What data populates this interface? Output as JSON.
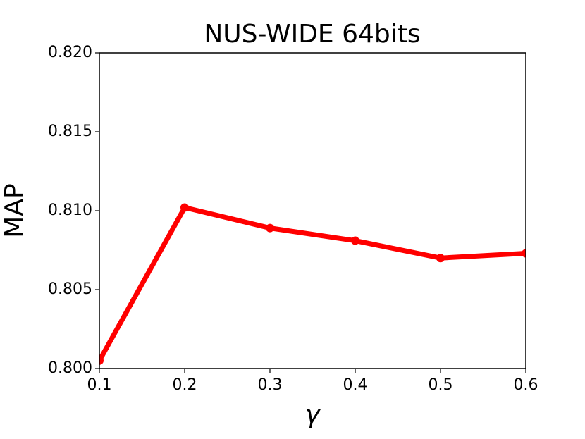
{
  "chart_data": {
    "type": "line",
    "title": "NUS-WIDE 64bits",
    "xlabel": "γ",
    "ylabel": "MAP",
    "x": [
      0.1,
      0.2,
      0.3,
      0.4,
      0.5,
      0.6
    ],
    "series": [
      {
        "color": "#ff0000",
        "values": [
          0.8005,
          0.8102,
          0.8089,
          0.8081,
          0.807,
          0.8073
        ]
      }
    ],
    "xlim": [
      0.1,
      0.6
    ],
    "xticks": [
      0.1,
      0.2,
      0.3,
      0.4,
      0.5,
      0.6
    ],
    "ylim": [
      0.8,
      0.82
    ],
    "yticks": [
      {
        "value": 0.8,
        "label": "0.800"
      },
      0.805,
      {
        "value": 0.81,
        "label": "0.810"
      },
      0.815,
      {
        "value": 0.82,
        "label": "0.820"
      }
    ],
    "grid": false
  }
}
